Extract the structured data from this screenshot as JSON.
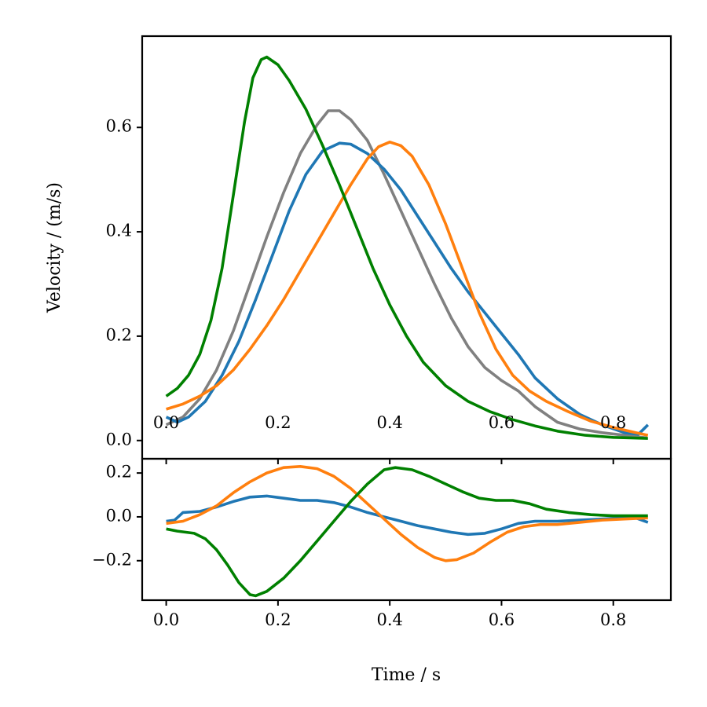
{
  "chart_data": [
    {
      "type": "line",
      "panel": "top",
      "title": "",
      "xlabel": "",
      "ylabel": "Velocity / (m/s)",
      "xlim": [
        -0.043,
        0.903
      ],
      "ylim": [
        -0.035,
        0.775
      ],
      "x_ticks": [
        "0.0",
        "0.2",
        "0.4",
        "0.6",
        "0.8"
      ],
      "y_ticks": [
        "0.0",
        "0.2",
        "0.4",
        "0.6"
      ],
      "grid": false,
      "legend": "none",
      "series": [
        {
          "name": "grey",
          "color": "#808080",
          "points": [
            [
              0.0,
              0.03
            ],
            [
              0.03,
              0.045
            ],
            [
              0.06,
              0.08
            ],
            [
              0.09,
              0.135
            ],
            [
              0.12,
              0.21
            ],
            [
              0.15,
              0.3
            ],
            [
              0.18,
              0.39
            ],
            [
              0.21,
              0.475
            ],
            [
              0.24,
              0.55
            ],
            [
              0.27,
              0.605
            ],
            [
              0.29,
              0.632
            ],
            [
              0.31,
              0.632
            ],
            [
              0.33,
              0.615
            ],
            [
              0.36,
              0.575
            ],
            [
              0.39,
              0.51
            ],
            [
              0.42,
              0.44
            ],
            [
              0.45,
              0.37
            ],
            [
              0.48,
              0.3
            ],
            [
              0.51,
              0.235
            ],
            [
              0.54,
              0.18
            ],
            [
              0.57,
              0.14
            ],
            [
              0.6,
              0.115
            ],
            [
              0.63,
              0.095
            ],
            [
              0.66,
              0.065
            ],
            [
              0.7,
              0.035
            ],
            [
              0.74,
              0.022
            ],
            [
              0.78,
              0.015
            ],
            [
              0.82,
              0.01
            ],
            [
              0.86,
              0.005
            ]
          ]
        },
        {
          "name": "blue",
          "color": "#1f77b4",
          "points": [
            [
              0.0,
              0.045
            ],
            [
              0.02,
              0.035
            ],
            [
              0.04,
              0.045
            ],
            [
              0.07,
              0.075
            ],
            [
              0.1,
              0.125
            ],
            [
              0.13,
              0.19
            ],
            [
              0.16,
              0.27
            ],
            [
              0.19,
              0.355
            ],
            [
              0.22,
              0.44
            ],
            [
              0.25,
              0.51
            ],
            [
              0.28,
              0.555
            ],
            [
              0.31,
              0.57
            ],
            [
              0.33,
              0.568
            ],
            [
              0.36,
              0.55
            ],
            [
              0.39,
              0.52
            ],
            [
              0.42,
              0.48
            ],
            [
              0.45,
              0.43
            ],
            [
              0.48,
              0.38
            ],
            [
              0.51,
              0.33
            ],
            [
              0.54,
              0.285
            ],
            [
              0.57,
              0.245
            ],
            [
              0.6,
              0.205
            ],
            [
              0.63,
              0.165
            ],
            [
              0.66,
              0.12
            ],
            [
              0.7,
              0.08
            ],
            [
              0.74,
              0.05
            ],
            [
              0.78,
              0.03
            ],
            [
              0.82,
              0.015
            ],
            [
              0.845,
              0.012
            ],
            [
              0.862,
              0.03
            ]
          ]
        },
        {
          "name": "orange",
          "color": "#ff7f0e",
          "points": [
            [
              0.0,
              0.06
            ],
            [
              0.03,
              0.07
            ],
            [
              0.06,
              0.085
            ],
            [
              0.09,
              0.105
            ],
            [
              0.12,
              0.135
            ],
            [
              0.15,
              0.175
            ],
            [
              0.18,
              0.22
            ],
            [
              0.21,
              0.27
            ],
            [
              0.24,
              0.325
            ],
            [
              0.27,
              0.38
            ],
            [
              0.3,
              0.435
            ],
            [
              0.33,
              0.49
            ],
            [
              0.36,
              0.54
            ],
            [
              0.38,
              0.563
            ],
            [
              0.4,
              0.572
            ],
            [
              0.42,
              0.565
            ],
            [
              0.44,
              0.545
            ],
            [
              0.47,
              0.49
            ],
            [
              0.5,
              0.415
            ],
            [
              0.53,
              0.33
            ],
            [
              0.56,
              0.245
            ],
            [
              0.59,
              0.175
            ],
            [
              0.62,
              0.125
            ],
            [
              0.65,
              0.095
            ],
            [
              0.68,
              0.075
            ],
            [
              0.72,
              0.055
            ],
            [
              0.76,
              0.037
            ],
            [
              0.8,
              0.025
            ],
            [
              0.84,
              0.015
            ],
            [
              0.862,
              0.01
            ]
          ]
        },
        {
          "name": "green",
          "color": "#008000",
          "points": [
            [
              0.0,
              0.085
            ],
            [
              0.02,
              0.1
            ],
            [
              0.04,
              0.125
            ],
            [
              0.06,
              0.165
            ],
            [
              0.08,
              0.23
            ],
            [
              0.1,
              0.33
            ],
            [
              0.12,
              0.47
            ],
            [
              0.14,
              0.61
            ],
            [
              0.155,
              0.695
            ],
            [
              0.17,
              0.73
            ],
            [
              0.18,
              0.735
            ],
            [
              0.2,
              0.72
            ],
            [
              0.22,
              0.69
            ],
            [
              0.25,
              0.635
            ],
            [
              0.28,
              0.565
            ],
            [
              0.31,
              0.49
            ],
            [
              0.34,
              0.41
            ],
            [
              0.37,
              0.33
            ],
            [
              0.4,
              0.26
            ],
            [
              0.43,
              0.2
            ],
            [
              0.46,
              0.15
            ],
            [
              0.5,
              0.105
            ],
            [
              0.54,
              0.075
            ],
            [
              0.58,
              0.055
            ],
            [
              0.62,
              0.04
            ],
            [
              0.66,
              0.028
            ],
            [
              0.7,
              0.018
            ],
            [
              0.75,
              0.01
            ],
            [
              0.8,
              0.006
            ],
            [
              0.862,
              0.004
            ]
          ]
        }
      ],
      "inner_x_tick_labels": [
        "0.0",
        "0.2",
        "0.4",
        "0.6",
        "0.8"
      ]
    },
    {
      "type": "line",
      "panel": "bottom",
      "title": "",
      "xlabel": "Time / s",
      "ylabel": "",
      "xlim": [
        -0.043,
        0.903
      ],
      "ylim": [
        -0.38,
        0.265
      ],
      "x_ticks": [
        "0.0",
        "0.2",
        "0.4",
        "0.6",
        "0.8"
      ],
      "y_ticks": [
        "0.2",
        "0.0",
        "−0.2"
      ],
      "grid": false,
      "legend": "none",
      "series": [
        {
          "name": "blue",
          "color": "#1f77b4",
          "points": [
            [
              0.0,
              -0.02
            ],
            [
              0.015,
              -0.015
            ],
            [
              0.03,
              0.02
            ],
            [
              0.06,
              0.025
            ],
            [
              0.09,
              0.045
            ],
            [
              0.12,
              0.07
            ],
            [
              0.15,
              0.09
            ],
            [
              0.18,
              0.095
            ],
            [
              0.21,
              0.085
            ],
            [
              0.24,
              0.075
            ],
            [
              0.27,
              0.075
            ],
            [
              0.3,
              0.065
            ],
            [
              0.33,
              0.045
            ],
            [
              0.36,
              0.02
            ],
            [
              0.39,
              0.0
            ],
            [
              0.42,
              -0.02
            ],
            [
              0.45,
              -0.04
            ],
            [
              0.48,
              -0.055
            ],
            [
              0.51,
              -0.07
            ],
            [
              0.54,
              -0.08
            ],
            [
              0.57,
              -0.075
            ],
            [
              0.6,
              -0.055
            ],
            [
              0.63,
              -0.03
            ],
            [
              0.66,
              -0.02
            ],
            [
              0.7,
              -0.02
            ],
            [
              0.74,
              -0.015
            ],
            [
              0.78,
              -0.01
            ],
            [
              0.82,
              -0.005
            ],
            [
              0.84,
              -0.005
            ],
            [
              0.862,
              -0.025
            ]
          ]
        },
        {
          "name": "orange",
          "color": "#ff7f0e",
          "points": [
            [
              0.0,
              -0.03
            ],
            [
              0.03,
              -0.02
            ],
            [
              0.06,
              0.01
            ],
            [
              0.09,
              0.05
            ],
            [
              0.12,
              0.11
            ],
            [
              0.15,
              0.16
            ],
            [
              0.18,
              0.2
            ],
            [
              0.21,
              0.225
            ],
            [
              0.24,
              0.23
            ],
            [
              0.27,
              0.22
            ],
            [
              0.3,
              0.185
            ],
            [
              0.33,
              0.13
            ],
            [
              0.36,
              0.06
            ],
            [
              0.39,
              -0.01
            ],
            [
              0.42,
              -0.08
            ],
            [
              0.45,
              -0.14
            ],
            [
              0.48,
              -0.185
            ],
            [
              0.5,
              -0.2
            ],
            [
              0.52,
              -0.195
            ],
            [
              0.55,
              -0.165
            ],
            [
              0.58,
              -0.115
            ],
            [
              0.61,
              -0.07
            ],
            [
              0.64,
              -0.045
            ],
            [
              0.67,
              -0.035
            ],
            [
              0.7,
              -0.035
            ],
            [
              0.74,
              -0.025
            ],
            [
              0.78,
              -0.015
            ],
            [
              0.82,
              -0.01
            ],
            [
              0.862,
              -0.005
            ]
          ]
        },
        {
          "name": "green",
          "color": "#008000",
          "points": [
            [
              0.0,
              -0.055
            ],
            [
              0.02,
              -0.065
            ],
            [
              0.05,
              -0.075
            ],
            [
              0.07,
              -0.1
            ],
            [
              0.09,
              -0.15
            ],
            [
              0.11,
              -0.22
            ],
            [
              0.13,
              -0.3
            ],
            [
              0.15,
              -0.355
            ],
            [
              0.16,
              -0.36
            ],
            [
              0.18,
              -0.34
            ],
            [
              0.21,
              -0.28
            ],
            [
              0.24,
              -0.2
            ],
            [
              0.27,
              -0.11
            ],
            [
              0.3,
              -0.02
            ],
            [
              0.33,
              0.07
            ],
            [
              0.36,
              0.15
            ],
            [
              0.39,
              0.215
            ],
            [
              0.41,
              0.225
            ],
            [
              0.44,
              0.215
            ],
            [
              0.47,
              0.185
            ],
            [
              0.5,
              0.15
            ],
            [
              0.53,
              0.115
            ],
            [
              0.56,
              0.085
            ],
            [
              0.59,
              0.075
            ],
            [
              0.62,
              0.075
            ],
            [
              0.65,
              0.06
            ],
            [
              0.68,
              0.035
            ],
            [
              0.72,
              0.02
            ],
            [
              0.76,
              0.01
            ],
            [
              0.8,
              0.005
            ],
            [
              0.862,
              0.005
            ]
          ]
        }
      ]
    }
  ]
}
